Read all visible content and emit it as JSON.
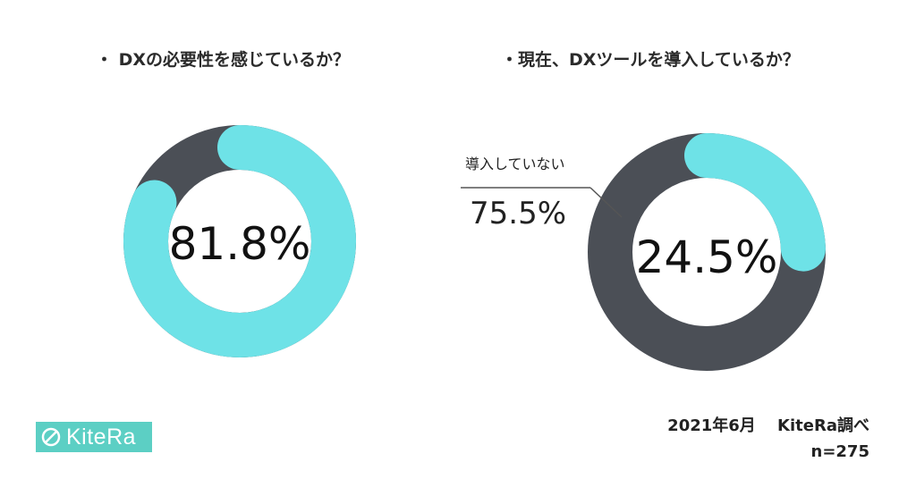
{
  "colors": {
    "accent": "#6ee2e7",
    "dark": "#4b4f56",
    "logo": "#5ccfc4"
  },
  "chart_data": [
    {
      "type": "pie",
      "title": "・ DXの必要性を感じているか？",
      "center_label": "81.8%",
      "slices": [
        {
          "label": "",
          "value": 81.8,
          "color": "#6ee2e7"
        },
        {
          "label": "",
          "value": 18.2,
          "color": "#4b4f56"
        }
      ]
    },
    {
      "type": "pie",
      "title": "・現在、DXツールを導入しているか？",
      "center_label": "24.5%",
      "callout_label": "導入していない",
      "callout_value": "75.5%",
      "slices": [
        {
          "label": "",
          "value": 24.5,
          "color": "#6ee2e7"
        },
        {
          "label": "導入していない",
          "value": 75.5,
          "color": "#4b4f56"
        }
      ]
    }
  ],
  "footer": {
    "source": "2021年6月　 KiteRa調べ",
    "n": "n=275"
  },
  "logo": {
    "text": "KiteRa"
  }
}
